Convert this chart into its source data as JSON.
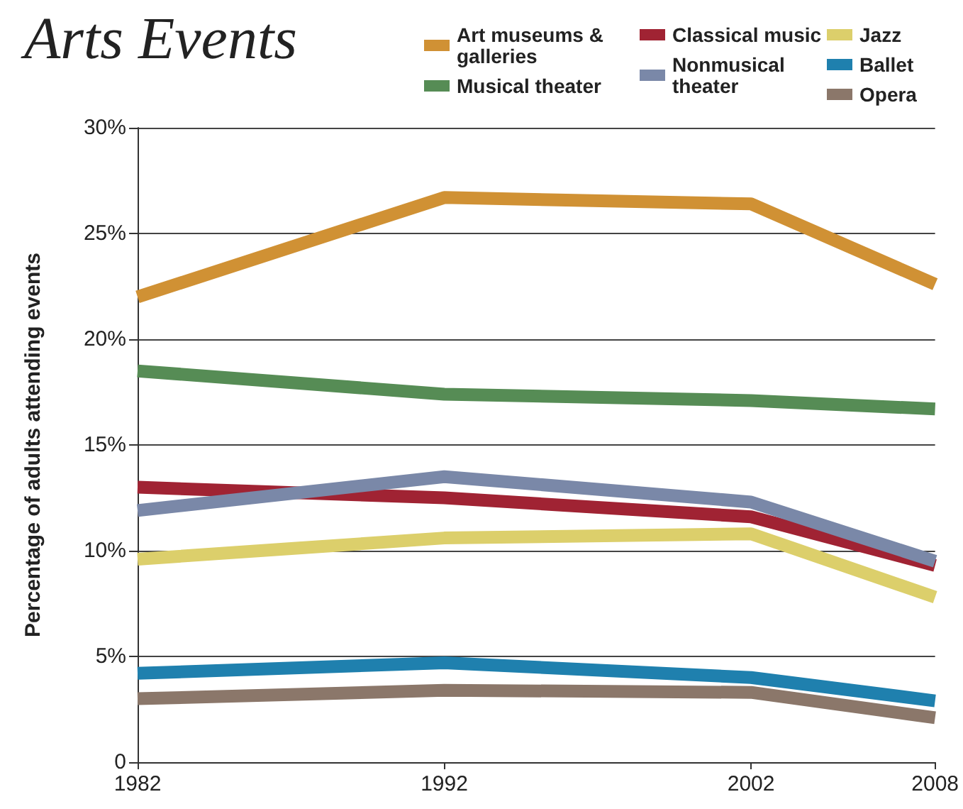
{
  "chart_data": {
    "type": "line",
    "title": "Arts Events",
    "ylabel": "Percentage of adults attending events",
    "x": [
      1982,
      1992,
      2002,
      2008
    ],
    "xlim": [
      1982,
      2008
    ],
    "xticks": [
      1982,
      1992,
      2002,
      2008
    ],
    "ylim": [
      0,
      30
    ],
    "yticks": [
      0,
      {
        "value": 5,
        "label": "5%"
      },
      {
        "value": 10,
        "label": "10%"
      },
      {
        "value": 15,
        "label": "15%"
      },
      {
        "value": 20,
        "label": "20%"
      },
      {
        "value": 25,
        "label": "25%"
      },
      {
        "value": 30,
        "label": "30%"
      }
    ],
    "grid": "y",
    "legend": "top right",
    "marker": "none",
    "line_style": "solid",
    "series": [
      {
        "name": "Art museums & galleries",
        "color": "#d09134",
        "values": [
          22.0,
          26.7,
          26.4,
          22.6
        ]
      },
      {
        "name": "Musical theater",
        "color": "#568c55",
        "values": [
          18.5,
          17.4,
          17.1,
          16.7
        ]
      },
      {
        "name": "Classical music",
        "color": "#a02333",
        "values": [
          13.0,
          12.5,
          11.6,
          9.3
        ]
      },
      {
        "name": "Nonmusical theater",
        "color": "#7a88a8",
        "values": [
          11.9,
          13.5,
          12.3,
          9.5
        ]
      },
      {
        "name": "Jazz",
        "color": "#dccf6b",
        "values": [
          9.6,
          10.6,
          10.8,
          7.8
        ]
      },
      {
        "name": "Ballet",
        "color": "#1f80ae",
        "values": [
          4.2,
          4.7,
          4.0,
          2.9
        ]
      },
      {
        "name": "Opera",
        "color": "#8b776a",
        "values": [
          3.0,
          3.4,
          3.3,
          2.1
        ]
      }
    ]
  }
}
